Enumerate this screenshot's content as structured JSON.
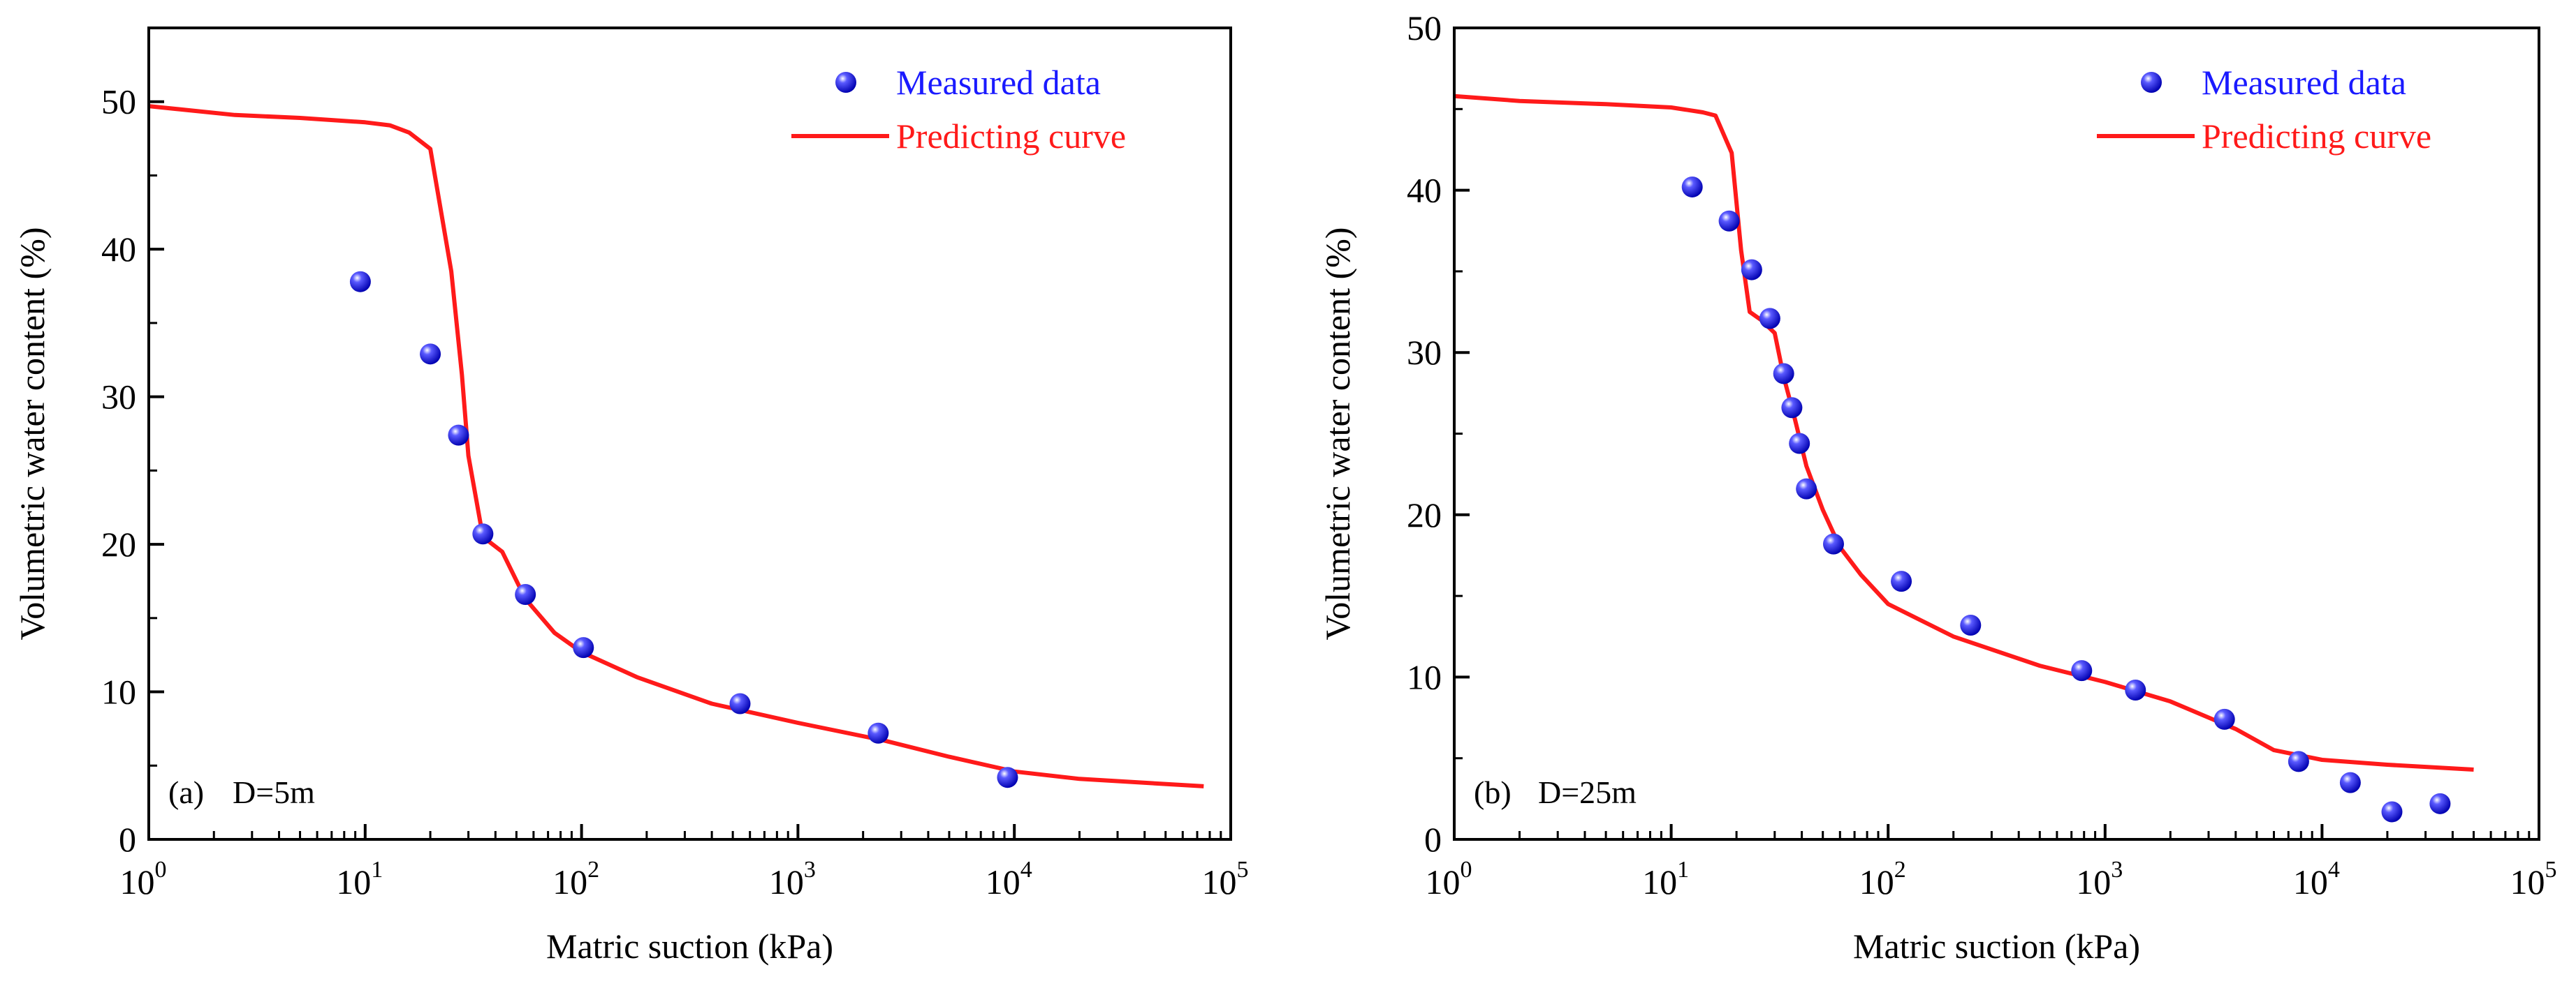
{
  "colors": {
    "axis": "#000000",
    "measured": "#1a1aff",
    "measured_text": "#1a1aff",
    "predicted": "#ff1a1a",
    "predicted_text": "#ff1a1a",
    "background": "#ffffff"
  },
  "chart_data": [
    {
      "type": "scatter+line",
      "panel_label": "(a)",
      "annotation": "D=5m",
      "xlabel": "Matric suction (kPa)",
      "ylabel": "Volumetric water content (%)",
      "xscale": "log",
      "xlim": [
        1,
        100000
      ],
      "ylim": [
        0,
        55
      ],
      "x_ticks": [
        1,
        10,
        100,
        1000,
        10000,
        100000
      ],
      "x_tick_labels": [
        {
          "base": "10",
          "exp": "0"
        },
        {
          "base": "10",
          "exp": "1"
        },
        {
          "base": "10",
          "exp": "2"
        },
        {
          "base": "10",
          "exp": "3"
        },
        {
          "base": "10",
          "exp": "4"
        },
        {
          "base": "10",
          "exp": "5"
        }
      ],
      "y_ticks": [
        0,
        10,
        20,
        30,
        40,
        50
      ],
      "y_tick_labels": [
        "0",
        "10",
        "20",
        "30",
        "40",
        "50"
      ],
      "y_minor_ticks": [
        5,
        15,
        25,
        35,
        45,
        55
      ],
      "legend_position": "top-right",
      "series": [
        {
          "name": "Measured data",
          "kind": "scatter",
          "x": [
            9.5,
            20,
            27,
            35,
            55,
            102,
            540,
            2350,
            9300
          ],
          "y": [
            37.8,
            32.9,
            27.4,
            20.7,
            16.6,
            13.0,
            9.2,
            7.2,
            4.2
          ]
        },
        {
          "name": "Predicting curve",
          "kind": "line",
          "x": [
            1,
            2.5,
            5,
            10,
            13,
            16,
            20,
            25,
            28,
            30,
            35,
            43,
            55,
            75,
            100,
            180,
            400,
            1000,
            2500,
            5000,
            10000,
            20000,
            75000
          ],
          "y": [
            49.7,
            49.1,
            48.9,
            48.6,
            48.4,
            47.9,
            46.8,
            38.5,
            31.5,
            26.0,
            20.5,
            19.5,
            16.3,
            14.0,
            12.7,
            11.0,
            9.2,
            7.9,
            6.7,
            5.6,
            4.6,
            4.1,
            3.6
          ]
        }
      ]
    },
    {
      "type": "scatter+line",
      "panel_label": "(b)",
      "annotation": "D=25m",
      "xlabel": "Matric suction (kPa)",
      "ylabel": "Volumetric water content (%)",
      "xscale": "log",
      "xlim": [
        1,
        100000
      ],
      "ylim": [
        0,
        50
      ],
      "x_ticks": [
        1,
        10,
        100,
        1000,
        10000,
        100000
      ],
      "x_tick_labels": [
        {
          "base": "10",
          "exp": "0"
        },
        {
          "base": "10",
          "exp": "1"
        },
        {
          "base": "10",
          "exp": "2"
        },
        {
          "base": "10",
          "exp": "3"
        },
        {
          "base": "10",
          "exp": "4"
        },
        {
          "base": "10",
          "exp": "5"
        }
      ],
      "y_ticks": [
        0,
        10,
        20,
        30,
        40,
        50
      ],
      "y_tick_labels": [
        "0",
        "10",
        "20",
        "30",
        "40",
        "50"
      ],
      "y_minor_ticks": [
        5,
        15,
        25,
        35,
        45
      ],
      "legend_position": "top-right",
      "series": [
        {
          "name": "Measured data",
          "kind": "scatter",
          "x": [
            12.5,
            18.5,
            23.5,
            28.5,
            33,
            36,
            39,
            42,
            56,
            115,
            240,
            780,
            1380,
            3550,
            7800,
            13500,
            21000,
            35000
          ],
          "y": [
            40.2,
            38.1,
            35.1,
            32.1,
            28.7,
            26.6,
            24.4,
            21.6,
            18.2,
            15.9,
            13.2,
            10.4,
            9.2,
            7.4,
            4.8,
            3.5,
            1.7,
            2.2
          ]
        },
        {
          "name": "Predicting curve",
          "kind": "line",
          "x": [
            1,
            2,
            5,
            10,
            14,
            16,
            19,
            21,
            23,
            26,
            30,
            33,
            37,
            42,
            50,
            60,
            75,
            100,
            200,
            500,
            1000,
            2000,
            4000,
            6000,
            10000,
            20000,
            50000
          ],
          "y": [
            45.8,
            45.5,
            45.3,
            45.1,
            44.8,
            44.6,
            42.3,
            36.3,
            32.5,
            32.0,
            31.2,
            28.5,
            26.0,
            23.0,
            20.3,
            18.0,
            16.3,
            14.5,
            12.5,
            10.7,
            9.7,
            8.5,
            6.8,
            5.5,
            4.9,
            4.6,
            4.3
          ]
        }
      ]
    }
  ]
}
